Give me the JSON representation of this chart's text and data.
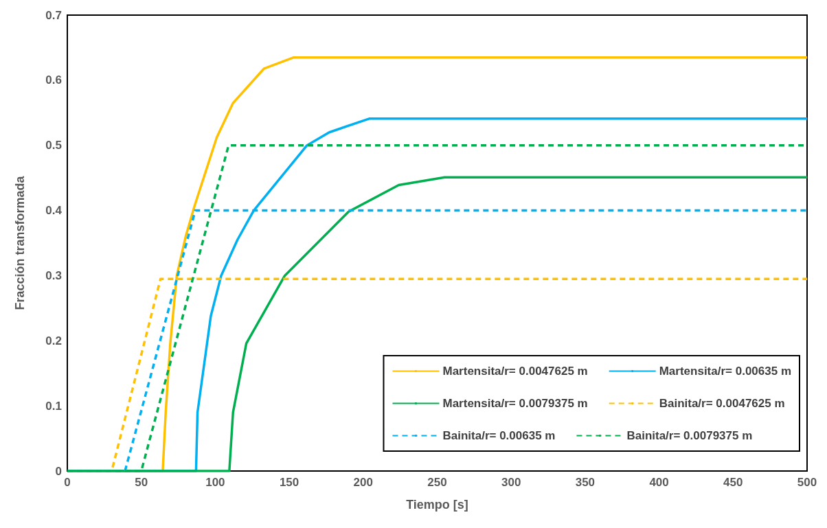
{
  "chart_data": {
    "type": "line",
    "xlabel": "Tiempo [s]",
    "ylabel": "Fracción transformada",
    "xlim": [
      0,
      500
    ],
    "xticks": [
      0,
      50,
      100,
      150,
      200,
      250,
      300,
      350,
      400,
      450,
      500
    ],
    "ylim": [
      0,
      0.7
    ],
    "yticks": [
      0,
      0.1,
      0.2,
      0.3,
      0.4,
      0.5,
      0.6,
      0.7
    ],
    "grid": false,
    "legend": "bottom right",
    "marker": "none",
    "series": [
      {
        "name": "Martensita/r= 0.0047625 m",
        "color": "#ffc000",
        "line_style": "solid",
        "x": [
          0,
          64.5,
          66.5,
          69.6,
          74,
          80,
          86,
          101,
          112,
          133,
          153,
          500
        ],
        "values": [
          0,
          0,
          0.09,
          0.196,
          0.3,
          0.36,
          0.407,
          0.512,
          0.565,
          0.618,
          0.635,
          0.635
        ]
      },
      {
        "name": "Martensita/r= 0.00635 m",
        "color": "#00b0f0",
        "line_style": "solid",
        "x": [
          0,
          87,
          88,
          97,
          104,
          115,
          126,
          131,
          162,
          177,
          204,
          500
        ],
        "values": [
          0,
          0,
          0.09,
          0.238,
          0.3,
          0.355,
          0.4,
          0.414,
          0.5,
          0.52,
          0.541,
          0.541
        ]
      },
      {
        "name": "Martensita/r= 0.0079375 m",
        "color": "#00b050",
        "line_style": "solid",
        "x": [
          0,
          109.5,
          112,
          121,
          147,
          190,
          224,
          255,
          500
        ],
        "values": [
          0,
          0,
          0.09,
          0.196,
          0.3,
          0.398,
          0.439,
          0.451,
          0.451
        ]
      },
      {
        "name": "Bainita/r= 0.0047625 m",
        "color": "#ffc000",
        "line_style": "dashed",
        "x": [
          0,
          30,
          63,
          500
        ],
        "values": [
          0,
          0,
          0.295,
          0.295
        ]
      },
      {
        "name": "Bainita/r= 0.00635 m",
        "color": "#00b0f0",
        "line_style": "dashed",
        "x": [
          0,
          39,
          86.5,
          500
        ],
        "values": [
          0,
          0,
          0.4,
          0.4
        ]
      },
      {
        "name": "Bainita/r= 0.0079375 m",
        "color": "#00b050",
        "line_style": "dashed",
        "x": [
          0,
          50,
          109,
          500
        ],
        "values": [
          0,
          0,
          0.5,
          0.5
        ]
      }
    ]
  }
}
